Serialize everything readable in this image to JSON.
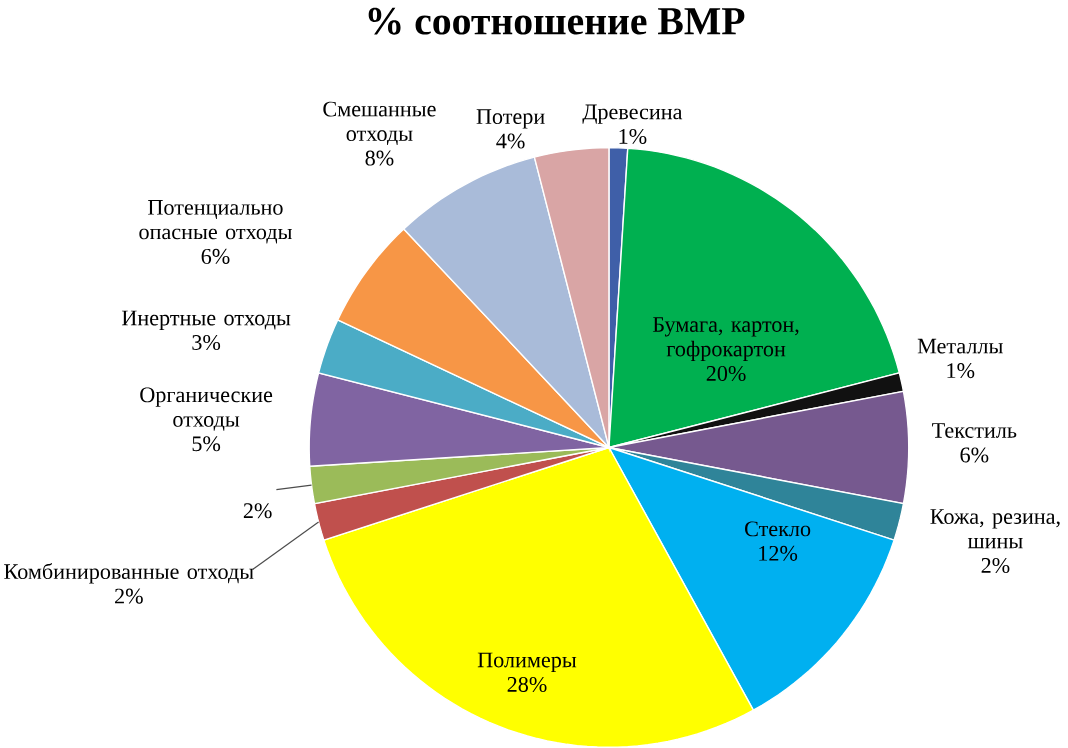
{
  "chart_data": {
    "type": "pie",
    "title": "% соотношение ВМР",
    "categories": [
      "Древесина",
      "Бумага, картон, гофрокартон",
      "Металлы",
      "Текстиль",
      "Кожа, резина, шины",
      "Стекло",
      "Полимеры",
      "Комбинированные отходы",
      null,
      "Органические отходы",
      "Инертные отходы",
      "Потенциально опасные отходы",
      "Смешанные отходы",
      "Потери"
    ],
    "values": [
      1,
      20,
      1,
      6,
      2,
      12,
      28,
      2,
      2,
      5,
      3,
      6,
      8,
      4
    ],
    "value_labels": [
      "1%",
      "20%",
      "1%",
      "6%",
      "2%",
      "12%",
      "28%",
      "2%",
      "2%",
      "5%",
      "3%",
      "6%",
      "8%",
      "4%"
    ],
    "colors": [
      "#3f5fa8",
      "#00b050",
      "#111111",
      "#76598f",
      "#2f8499",
      "#00b0f0",
      "#ffff00",
      "#c0504d",
      "#9bbb59",
      "#8064a2",
      "#4bacc6",
      "#f79646",
      "#a9bbd9",
      "#d9a5a5"
    ]
  }
}
